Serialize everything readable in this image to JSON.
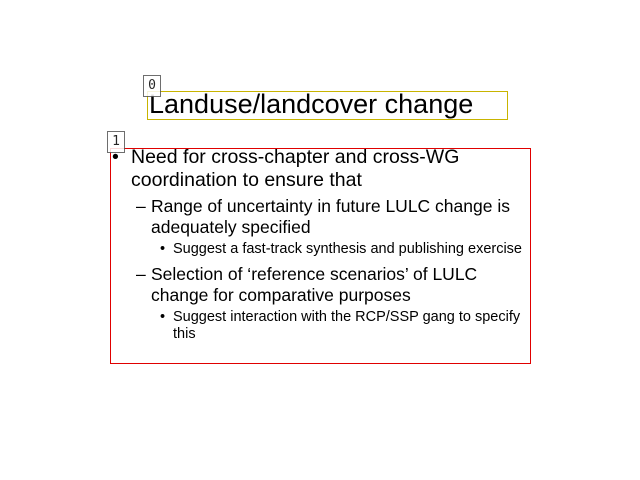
{
  "slide": {
    "title": "Landuse/landcover change",
    "region_tags": [
      "0",
      "1"
    ],
    "bullets": [
      {
        "text": "Need for cross-chapter and cross-WG coordination to ensure that",
        "sub": [
          {
            "text": "Range of uncertainty in future LULC change is adequately specified",
            "sub": [
              {
                "text": "Suggest a fast-track synthesis and publishing exercise"
              }
            ]
          },
          {
            "text": "Selection of ‘reference scenarios’ of LULC change for comparative purposes",
            "sub": [
              {
                "text": "Suggest interaction with the RCP/SSP gang to specify this"
              }
            ]
          }
        ]
      }
    ],
    "bullet_glyphs": {
      "level1": "•",
      "level2": "–",
      "level3": "•"
    },
    "colors": {
      "title_box": "#c8b400",
      "body_box": "#e00000",
      "text": "#000000"
    }
  }
}
